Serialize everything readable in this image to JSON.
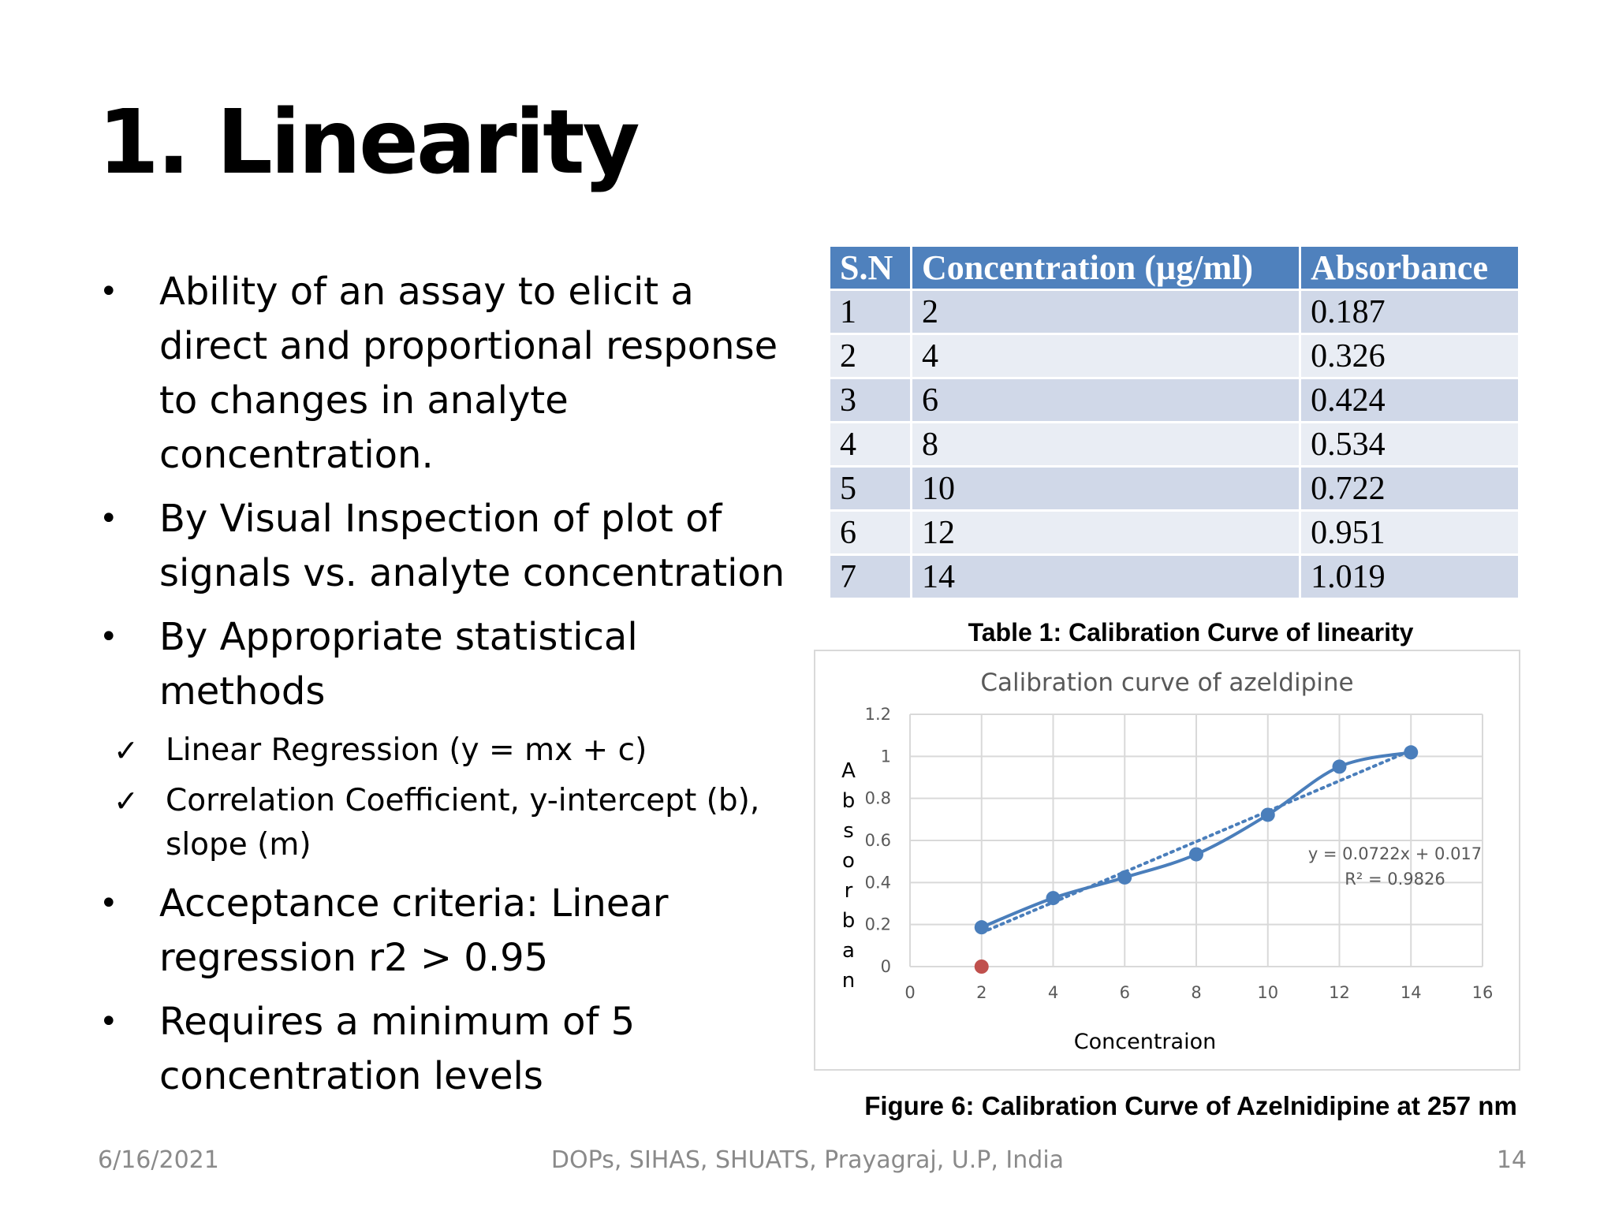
{
  "slide": {
    "title": "1. Linearity",
    "bullets": [
      {
        "text": "Ability of an assay to elicit a direct and proportional response to changes in analyte concentration.",
        "subs": []
      },
      {
        "text": "By Visual Inspection of plot of signals vs. analyte concentration",
        "subs": []
      },
      {
        "text": "By Appropriate statistical methods",
        "subs": [
          "Linear Regression (y = mx + c)",
          "Correlation Coefficient, y-intercept (b), slope (m)"
        ]
      },
      {
        "text": "Acceptance criteria: Linear regression r2 > 0.95",
        "subs": []
      },
      {
        "text": "Requires a minimum of 5 concentration levels",
        "subs": []
      }
    ],
    "bullet_glyph": "•",
    "check_glyph": "✓"
  },
  "table": {
    "headers": [
      "S.N",
      "Concentration (µg/ml)",
      "Absorbance"
    ],
    "rows": [
      [
        "1",
        "2",
        "0.187"
      ],
      [
        "2",
        "4",
        "0.326"
      ],
      [
        "3",
        "6",
        "0.424"
      ],
      [
        "4",
        "8",
        "0.534"
      ],
      [
        "5",
        "10",
        "0.722"
      ],
      [
        "6",
        "12",
        "0.951"
      ],
      [
        "7",
        "14",
        "1.019"
      ]
    ],
    "caption": "Table 1: Calibration Curve of linearity",
    "header_color": "#4f81bd",
    "row_colors": [
      "#d0d8e8",
      "#e9edf4"
    ]
  },
  "chart_data": {
    "type": "scatter",
    "title": "Calibration curve of azeldipine",
    "xlabel": "Concentraion",
    "ylabel": "Absorban",
    "xlim": [
      0,
      16
    ],
    "ylim": [
      0,
      1.2
    ],
    "xticks": [
      "0",
      "2",
      "4",
      "6",
      "8",
      "10",
      "12",
      "14",
      "16"
    ],
    "yticks": [
      "0",
      "0.2",
      "0.4",
      "0.6",
      "0.8",
      "1",
      "1.2"
    ],
    "grid": true,
    "series": [
      {
        "x": [
          2,
          4,
          6,
          8,
          10,
          12,
          14
        ],
        "y": [
          0.187,
          0.326,
          0.424,
          0.534,
          0.722,
          0.951,
          1.019
        ],
        "color": "#4a7ebb",
        "smooth": true
      }
    ],
    "extra_points": [
      {
        "x": 2,
        "y": 0,
        "color": "#c0504d"
      }
    ],
    "trendline": {
      "slope": 0.0722,
      "intercept": 0.017,
      "color": "#4a7ebb",
      "style": "dotted"
    },
    "equation": "y = 0.0722x + 0.017",
    "r_squared": "R² = 0.9826"
  },
  "figure_caption": "Figure 6: Calibration Curve of Azelnidipine at 257 nm",
  "footer": {
    "date": "6/16/2021",
    "organization": "DOPs, SIHAS, SHUATS, Prayagraj, U.P, India",
    "page": "14"
  }
}
